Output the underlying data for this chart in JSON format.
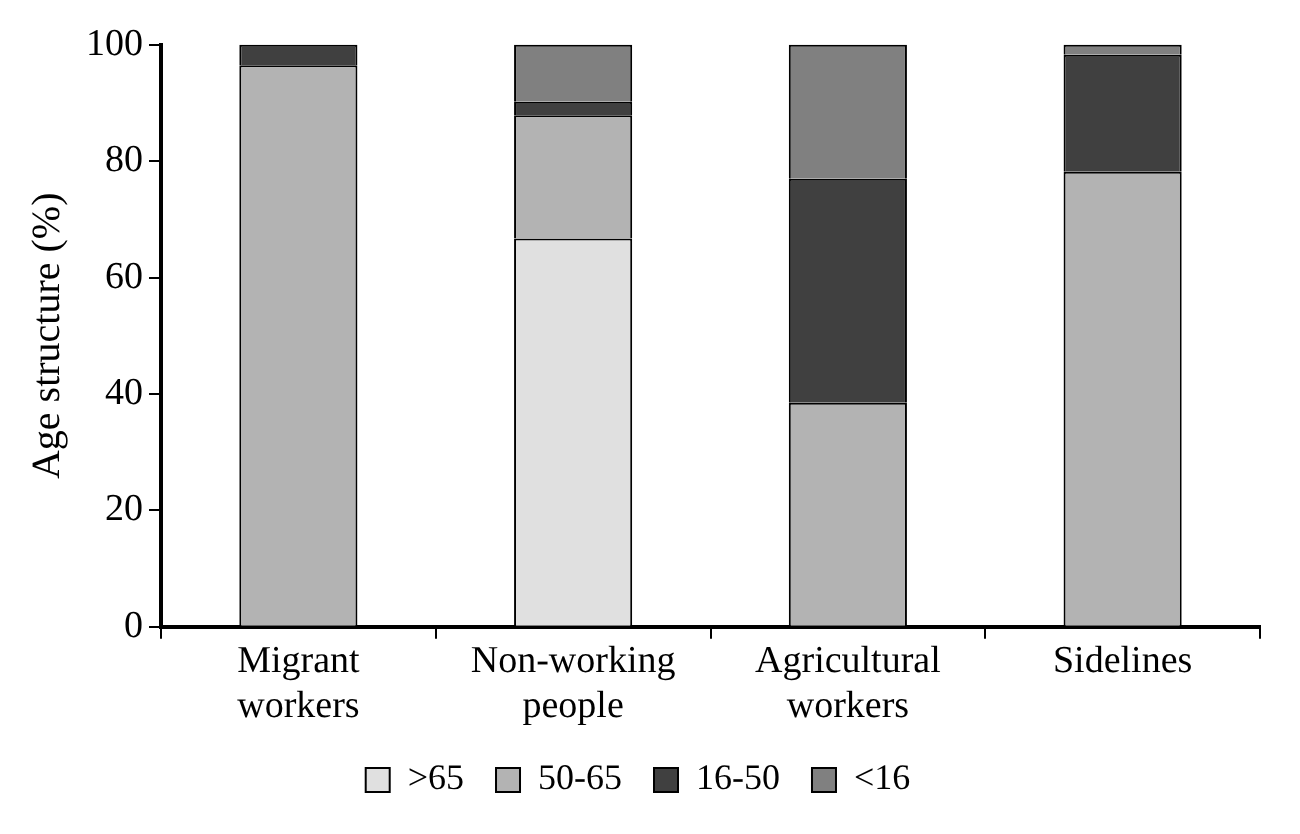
{
  "chart_data": {
    "type": "bar",
    "stacked": true,
    "ylabel": "Age structure (%)",
    "categories": [
      "Migrant workers",
      "Non-working people",
      "Agricultural workers",
      "Sidelines"
    ],
    "series": [
      {
        "name": ">65",
        "color": "#e0e0e0",
        "values": [
          0,
          66.7,
          0,
          0
        ]
      },
      {
        "name": "50-65",
        "color": "#b3b3b3",
        "values": [
          96.5,
          21.2,
          38.5,
          78.2
        ]
      },
      {
        "name": "16-50",
        "color": "#404040",
        "values": [
          3.5,
          2.3,
          38.5,
          20.1
        ]
      },
      {
        "name": "<16",
        "color": "#808080",
        "values": [
          0,
          9.8,
          23,
          1.7
        ]
      }
    ],
    "ylim": [
      0,
      100
    ],
    "yticks": [
      0,
      20,
      40,
      60,
      80,
      100
    ],
    "grid": false,
    "legend": "bottom"
  }
}
